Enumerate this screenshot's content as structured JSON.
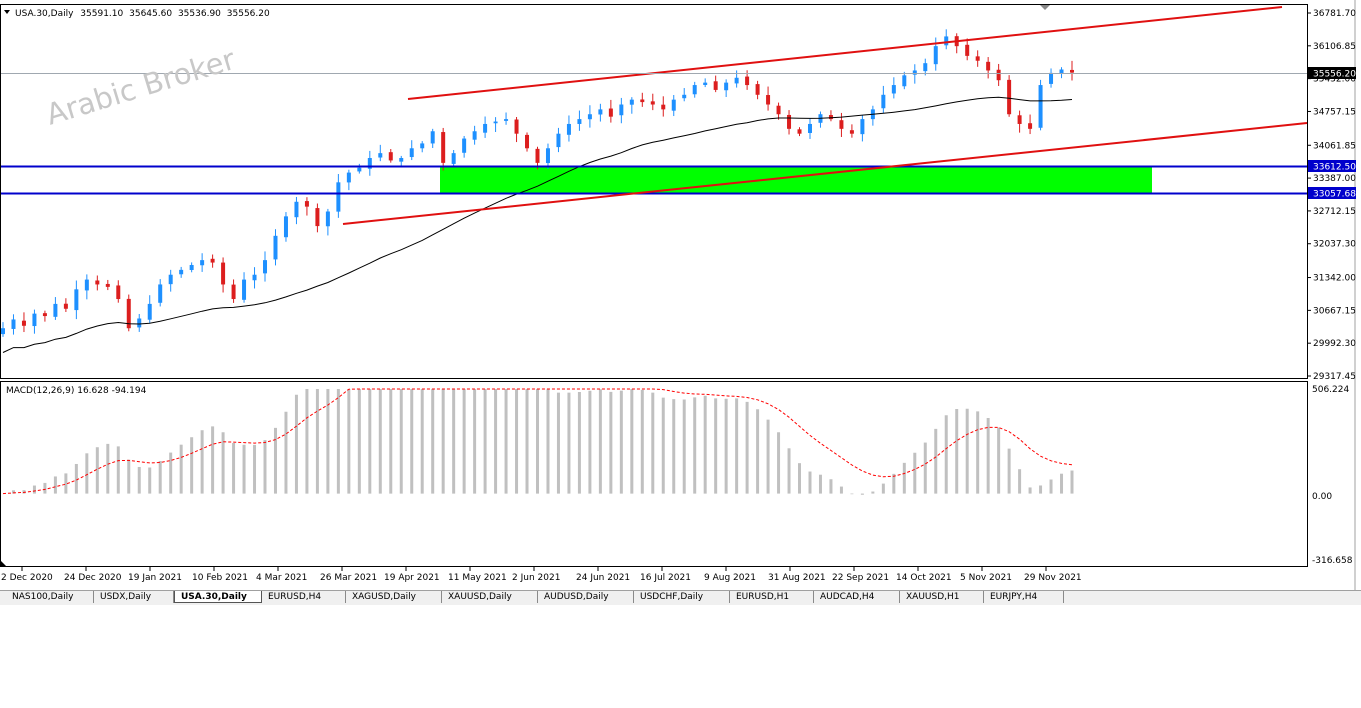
{
  "symbol_info": {
    "symbol": "USA.30,Daily",
    "open": "35591.10",
    "high": "35645.60",
    "low": "35536.90",
    "close": "35556.20"
  },
  "watermark": "Arabic Broker",
  "price_axis": {
    "ticks": [
      "36781.70",
      "36106.85",
      "35432.00",
      "34757.15",
      "34061.85",
      "33387.00",
      "32712.15",
      "32037.30",
      "31342.00",
      "30667.15",
      "29992.30",
      "29317.45"
    ],
    "current_price": "35556.20",
    "level_upper": "33612.50",
    "level_lower": "33057.68"
  },
  "macd": {
    "label": "MACD(12,26,9) 16.628 -94.194",
    "ticks": [
      "506.224",
      "0.00",
      "-316.658"
    ]
  },
  "time_axis": {
    "labels": [
      "2 Dec 2020",
      "24 Dec 2020",
      "19 Jan 2021",
      "10 Feb 2021",
      "4 Mar 2021",
      "26 Mar 2021",
      "19 Apr 2021",
      "11 May 2021",
      "2 Jun 2021",
      "24 Jun 2021",
      "16 Jul 2021",
      "9 Aug 2021",
      "31 Aug 2021",
      "22 Sep 2021",
      "14 Oct 2021",
      "5 Nov 2021",
      "29 Nov 2021"
    ]
  },
  "chart_data": {
    "type": "candlestick",
    "ohlc_last": {
      "open": 35591.1,
      "high": 35645.6,
      "low": 35536.9,
      "close": 35556.2
    },
    "close_series": [
      30300,
      30480,
      30350,
      30600,
      30550,
      30800,
      30700,
      31100,
      31300,
      31200,
      31150,
      30900,
      30300,
      30500,
      30800,
      31200,
      31400,
      31500,
      31600,
      31700,
      31650,
      31200,
      30900,
      31300,
      31400,
      31700,
      32200,
      32600,
      32900,
      32800,
      32400,
      32700,
      33300,
      33500,
      33600,
      33800,
      33900,
      33750,
      33800,
      34000,
      34100,
      34350,
      33700,
      33900,
      34200,
      34350,
      34500,
      34550,
      34600,
      34300,
      34000,
      33700,
      34000,
      34300,
      34500,
      34600,
      34700,
      34800,
      34650,
      34900,
      35000,
      34950,
      34900,
      34800,
      35000,
      35100,
      35300,
      35350,
      35200,
      35350,
      35450,
      35300,
      35100,
      34900,
      34700,
      34400,
      34300,
      34500,
      34700,
      34600,
      34400,
      34300,
      34600,
      34800,
      35100,
      35300,
      35500,
      35600,
      35750,
      36100,
      36300,
      36100,
      35900,
      35800,
      35600,
      35400,
      34700,
      34500,
      34400,
      35300,
      35550,
      35620,
      35556
    ],
    "support_resistance_levels": [
      33612.5,
      33057.68
    ],
    "price_range": [
      29317.45,
      36781.7
    ],
    "macd_range": [
      -316.658,
      506.224
    ],
    "macd_params": "12,26,9",
    "macd_main": 16.628,
    "macd_signal": -94.194
  },
  "tabs": [
    {
      "label": "NAS100,Daily",
      "active": false
    },
    {
      "label": "USDX,Daily",
      "active": false
    },
    {
      "label": "USA.30,Daily",
      "active": true
    },
    {
      "label": "EURUSD,H4",
      "active": false
    },
    {
      "label": "XAGUSD,Daily",
      "active": false
    },
    {
      "label": "XAUUSD,Daily",
      "active": false
    },
    {
      "label": "AUDUSD,Daily",
      "active": false
    },
    {
      "label": "USDCHF,Daily",
      "active": false
    },
    {
      "label": "EURUSD,H1",
      "active": false
    },
    {
      "label": "AUDCAD,H4",
      "active": false
    },
    {
      "label": "XAUUSD,H1",
      "active": false
    },
    {
      "label": "EURJPY,H4",
      "active": false
    }
  ],
  "colors": {
    "bull": "#1e90ff",
    "bear": "#dc1e1e",
    "channel": "#e01010",
    "level": "#0000cc",
    "zone": "#00ff00",
    "ma": "#000000",
    "macd_hist": "#c0c0c0",
    "macd_signal": "#ff0000"
  }
}
